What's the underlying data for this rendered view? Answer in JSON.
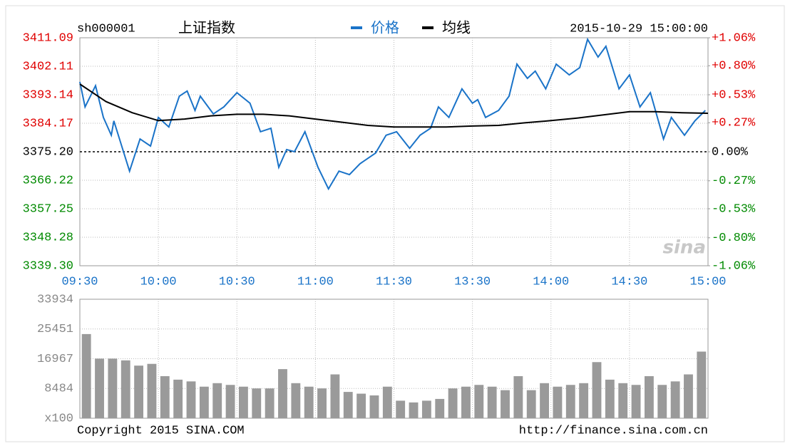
{
  "chart_data": {
    "type": "line",
    "symbol": "sh000001",
    "name": "上证指数",
    "timestamp": "2015-10-29 15:00:00",
    "copyright": "Copyright 2015 SINA.COM",
    "url": "http://finance.sina.com.cn",
    "logo": "sina",
    "grid": true,
    "xlim": [
      0,
      240
    ],
    "xticks": [
      {
        "value": 0,
        "label": "09:30"
      },
      {
        "value": 30,
        "label": "10:00"
      },
      {
        "value": 60,
        "label": "10:30"
      },
      {
        "value": 90,
        "label": "11:00"
      },
      {
        "value": 120,
        "label": "11:30"
      },
      {
        "value": 150,
        "label": "13:30"
      },
      {
        "value": 180,
        "label": "14:00"
      },
      {
        "value": 210,
        "label": "14:30"
      },
      {
        "value": 240,
        "label": "15:00"
      }
    ],
    "ylim": [
      3339.3,
      3411.09
    ],
    "yticks": [
      3411.09,
      3402.11,
      3393.14,
      3384.17,
      {
        "value": 3375.2,
        "label": "3375.20"
      },
      3366.22,
      3357.25,
      3348.28,
      {
        "value": 3339.3,
        "label": "3339.30"
      }
    ],
    "prev_close": 3375.2,
    "y2lim": [
      -1.06,
      1.06
    ],
    "y2ticks": [
      {
        "value": 1.06,
        "label": "+1.06%"
      },
      {
        "value": 0.8,
        "label": "+0.80%"
      },
      {
        "value": 0.53,
        "label": "+0.53%"
      },
      {
        "value": 0.27,
        "label": "+0.27%"
      },
      {
        "value": 0,
        "label": "0.00%"
      },
      {
        "value": -0.27,
        "label": "-0.27%"
      },
      {
        "value": -0.53,
        "label": "-0.53%"
      },
      {
        "value": -0.8,
        "label": "-0.80%"
      },
      {
        "value": -1.06,
        "label": "-1.06%"
      }
    ],
    "series": [
      {
        "name": "价格",
        "color": "#1a73c8",
        "x": [
          0,
          2,
          6,
          9,
          12,
          13,
          16,
          19,
          23,
          27,
          30,
          34,
          38,
          41,
          44,
          46,
          51,
          55,
          60,
          65,
          69,
          73,
          76,
          79,
          82,
          86,
          91,
          95,
          99,
          103,
          107,
          113,
          117,
          121,
          126,
          130,
          134,
          137,
          141,
          146,
          150,
          152,
          155,
          160,
          164,
          167,
          171,
          174,
          178,
          182,
          187,
          191,
          194,
          198,
          201,
          206,
          210,
          214,
          218,
          223,
          226,
          231,
          235,
          239
        ],
        "values": [
          3397.2,
          3389.3,
          3396.0,
          3386.0,
          3380.4,
          3384.9,
          3377.0,
          3369.1,
          3379.2,
          3377.0,
          3386.0,
          3383.0,
          3392.7,
          3394.3,
          3388.2,
          3392.7,
          3387.1,
          3389.3,
          3393.8,
          3390.5,
          3381.5,
          3382.6,
          3370.3,
          3375.9,
          3375.2,
          3381.5,
          3370.3,
          3363.5,
          3369.1,
          3368.0,
          3371.4,
          3374.8,
          3380.4,
          3381.5,
          3376.3,
          3380.4,
          3382.6,
          3389.3,
          3386.0,
          3395.0,
          3390.5,
          3391.6,
          3386.0,
          3388.2,
          3392.7,
          3402.8,
          3398.3,
          3400.6,
          3395.0,
          3402.8,
          3399.4,
          3401.7,
          3410.6,
          3405.0,
          3408.4,
          3395.0,
          3399.4,
          3389.3,
          3393.8,
          3379.2,
          3386.0,
          3380.4,
          3384.9,
          3388.2
        ]
      },
      {
        "name": "均线",
        "color": "#000000",
        "x": [
          0,
          10,
          20,
          30,
          40,
          50,
          60,
          70,
          80,
          90,
          100,
          110,
          120,
          130,
          140,
          150,
          160,
          170,
          180,
          190,
          200,
          210,
          220,
          230,
          240
        ],
        "values": [
          3396.5,
          3391.0,
          3387.5,
          3385.0,
          3385.5,
          3386.5,
          3387.0,
          3387.0,
          3386.5,
          3385.5,
          3384.5,
          3383.5,
          3383.0,
          3383.0,
          3383.0,
          3383.3,
          3383.5,
          3384.3,
          3385.0,
          3385.8,
          3386.8,
          3387.8,
          3387.8,
          3387.5,
          3387.3
        ]
      }
    ],
    "volume": {
      "type": "bar",
      "color": "#9a9a9a",
      "ylim": [
        0,
        33934
      ],
      "yticks": [
        33934,
        25451,
        16967,
        8484,
        {
          "value": 0,
          "label": "x100"
        }
      ],
      "x": [
        0,
        5,
        10,
        15,
        20,
        25,
        30,
        35,
        40,
        45,
        50,
        55,
        60,
        65,
        70,
        75,
        80,
        85,
        90,
        95,
        100,
        105,
        110,
        115,
        120,
        125,
        130,
        135,
        140,
        145,
        150,
        155,
        160,
        165,
        170,
        175,
        180,
        185,
        190,
        195,
        200,
        205,
        210,
        215,
        220,
        225,
        230,
        235
      ],
      "values": [
        24000,
        17000,
        17000,
        16500,
        15000,
        15500,
        12000,
        11000,
        10500,
        9000,
        10000,
        9500,
        9000,
        8500,
        8500,
        14000,
        10000,
        9000,
        8500,
        12500,
        7500,
        7000,
        6500,
        9000,
        5000,
        4500,
        5000,
        5500,
        8500,
        9000,
        9500,
        9000,
        8000,
        12000,
        8000,
        10000,
        9000,
        9500,
        10000,
        16000,
        11000,
        10000,
        9500,
        12000,
        9500,
        10500,
        12500,
        19000
      ]
    }
  }
}
